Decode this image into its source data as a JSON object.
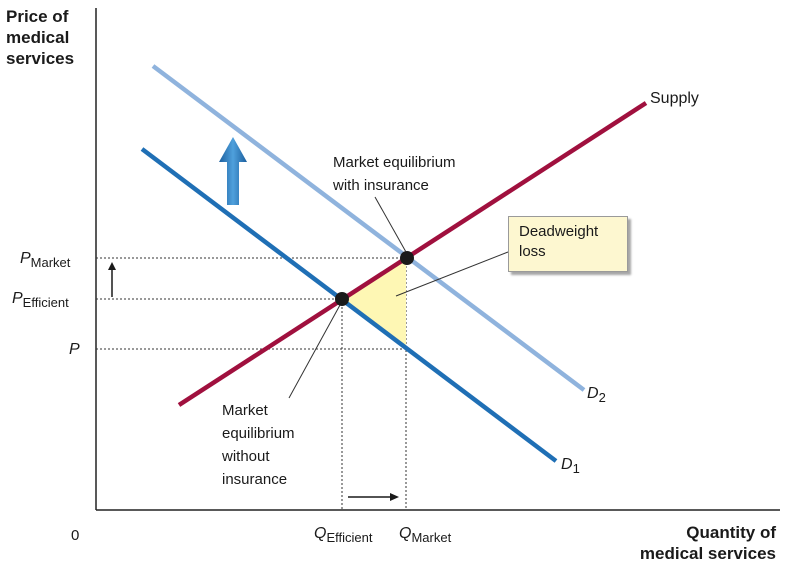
{
  "axes": {
    "y_title": [
      "Price of",
      "medical",
      "services"
    ],
    "x_title": [
      "Quantity of",
      "medical services"
    ],
    "origin": "0"
  },
  "price_labels": {
    "p_market": {
      "main": "P",
      "sub": "Market"
    },
    "p_efficient": {
      "main": "P",
      "sub": "Efficient"
    },
    "p": {
      "main": "P"
    }
  },
  "quantity_labels": {
    "q_efficient": {
      "main": "Q",
      "sub": "Efficient"
    },
    "q_market": {
      "main": "Q",
      "sub": "Market"
    }
  },
  "curve_labels": {
    "supply": "Supply",
    "d1": {
      "main": "D",
      "sub": "1"
    },
    "d2": {
      "main": "D",
      "sub": "2"
    }
  },
  "annotations": {
    "with_insurance": [
      "Market equilibrium",
      "with insurance"
    ],
    "without_insurance": [
      "Market",
      "equilibrium",
      "without",
      "insurance"
    ],
    "deadweight": [
      "Deadweight",
      "loss"
    ]
  },
  "colors": {
    "supply": "#a0103e",
    "d1": "#1f6fb5",
    "d2": "#8fb3dd",
    "shift_arrow": "#2f86c8",
    "deadweight_fill": "#fef7b4"
  },
  "icons": [
    "up-shift-arrow-icon",
    "small-up-arrow-icon",
    "right-arrow-icon"
  ]
}
